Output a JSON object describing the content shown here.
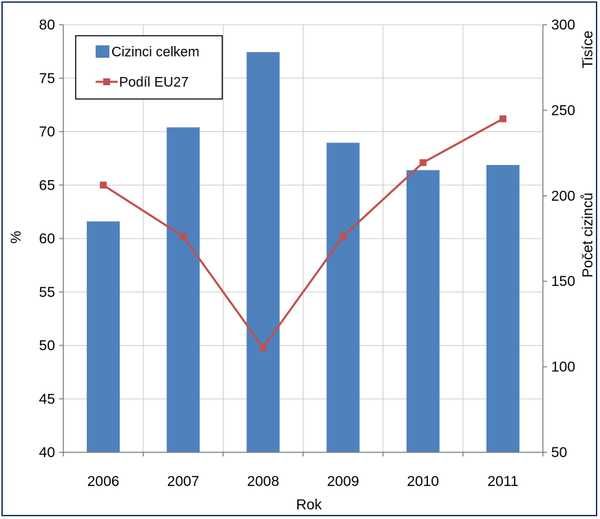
{
  "chart_data": {
    "type": "bar",
    "categories": [
      "2006",
      "2007",
      "2008",
      "2009",
      "2010",
      "2011"
    ],
    "series": [
      {
        "name": "Cizinci celkem",
        "kind": "bar",
        "axis": "right",
        "color": "#4f81bd",
        "values": [
          185,
          240,
          284,
          231,
          215,
          218
        ]
      },
      {
        "name": "Podíl EU27",
        "kind": "line",
        "axis": "left",
        "color": "#c0504d",
        "marker": "square",
        "values": [
          65.0,
          60.2,
          49.8,
          60.2,
          67.1,
          71.2
        ]
      }
    ],
    "xlabel": "Rok",
    "ylabel": "%",
    "y2label": "Počet cizinců",
    "y2unit": "Tisíce",
    "ylim": [
      40,
      80
    ],
    "y2lim": [
      50,
      300
    ],
    "yticks": [
      "40",
      "45",
      "50",
      "55",
      "60",
      "65",
      "70",
      "75",
      "80"
    ],
    "y2ticks": [
      "50",
      "100",
      "150",
      "200",
      "250",
      "300"
    ],
    "grid": true,
    "legend_position": "top-left"
  }
}
